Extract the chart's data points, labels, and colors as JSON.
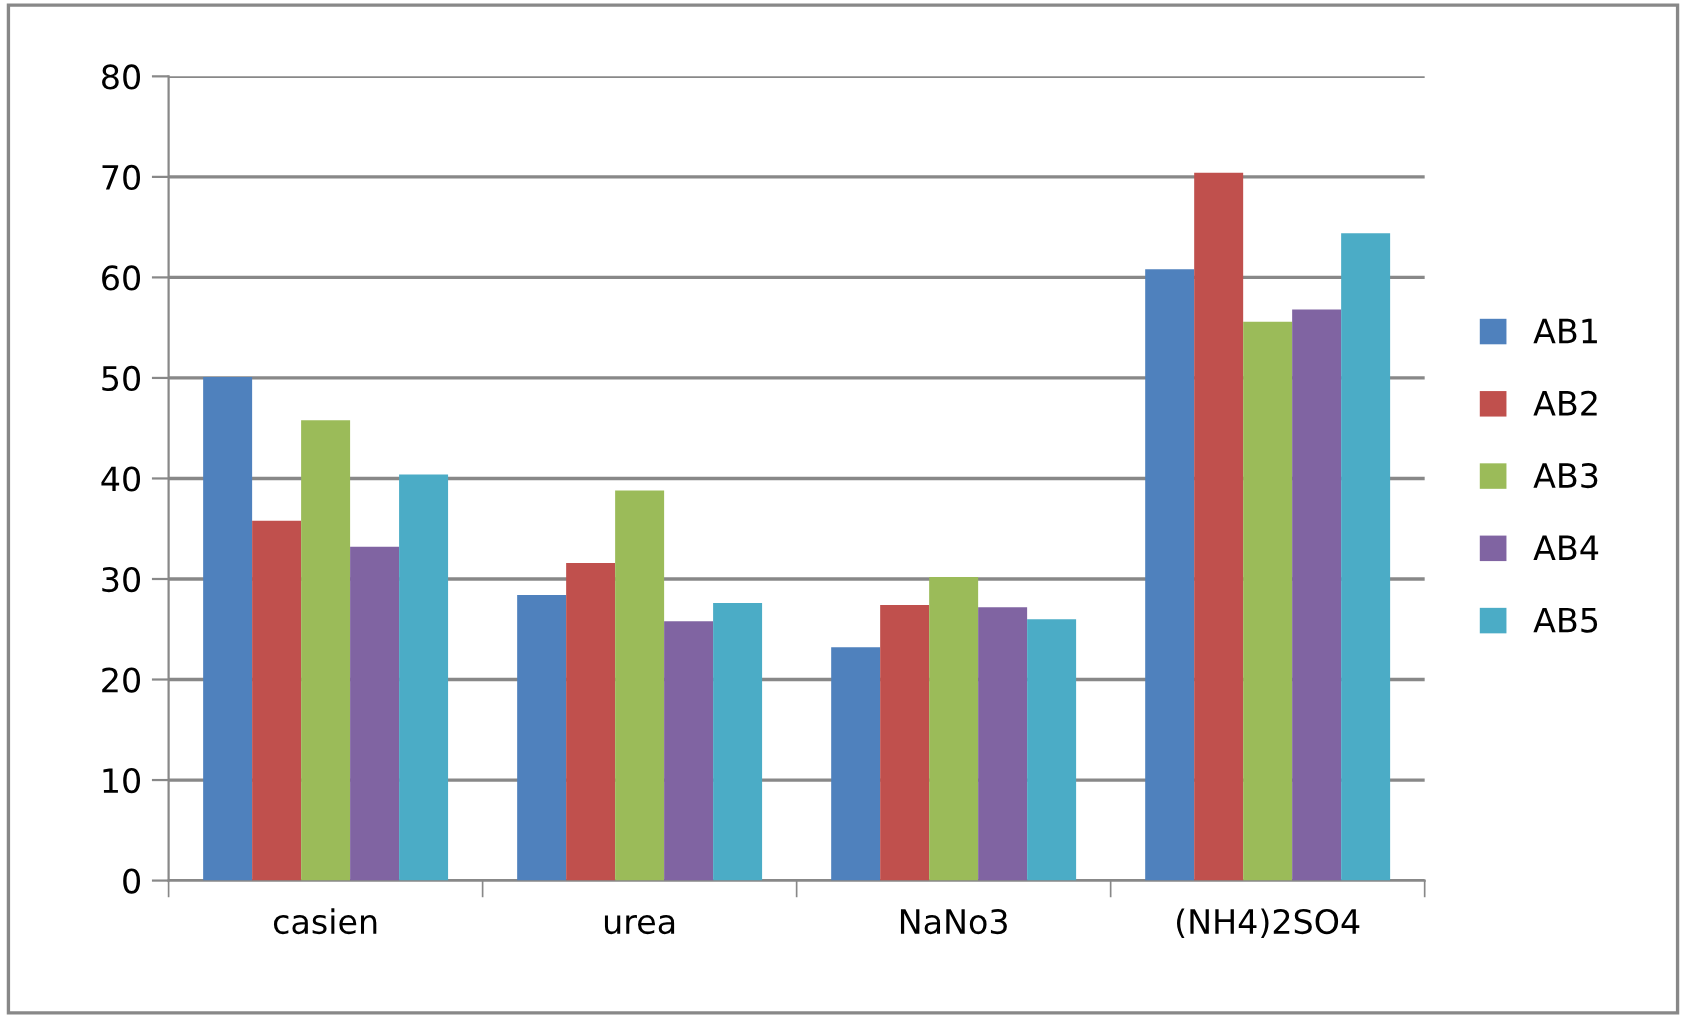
{
  "chart_data": {
    "type": "bar",
    "categories": [
      "casien",
      "urea",
      "NaNo3",
      "(NH4)2SO4"
    ],
    "series": [
      {
        "name": "AB1",
        "color": "#4f81bd",
        "values": [
          50.1,
          28.4,
          23.2,
          60.8
        ]
      },
      {
        "name": "AB2",
        "color": "#c0504d",
        "values": [
          35.8,
          31.6,
          27.4,
          70.4
        ]
      },
      {
        "name": "AB3",
        "color": "#9bbb59",
        "values": [
          45.8,
          38.8,
          30.2,
          55.6
        ]
      },
      {
        "name": "AB4",
        "color": "#8064a2",
        "values": [
          33.2,
          25.8,
          27.2,
          56.8
        ]
      },
      {
        "name": "AB5",
        "color": "#4bacc6",
        "values": [
          40.4,
          27.6,
          26.0,
          64.4
        ]
      }
    ],
    "ylim": [
      0,
      80
    ],
    "yticks": [
      0,
      10,
      20,
      30,
      40,
      50,
      60,
      70,
      80
    ],
    "grid": "y",
    "legend": "right"
  }
}
